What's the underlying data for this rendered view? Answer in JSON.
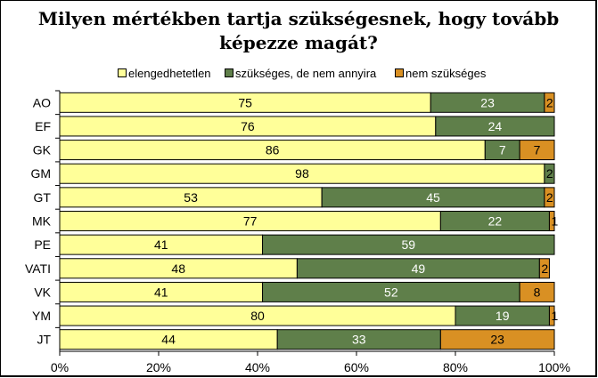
{
  "chart_data": {
    "type": "bar",
    "orientation": "horizontal",
    "stacked": "percent",
    "title": "Milyen mértékben tartja szükségesnek, hogy tovább képezze magát?",
    "categories": [
      "AO",
      "EF",
      "GK",
      "GM",
      "GT",
      "MK",
      "PE",
      "VATI",
      "VK",
      "YM",
      "JT"
    ],
    "series": [
      {
        "name": "elengedhetetlen",
        "color": "#FFFF99",
        "values": [
          75,
          76,
          86,
          98,
          53,
          77,
          41,
          48,
          41,
          80,
          44
        ]
      },
      {
        "name": "szükséges, de nem annyira",
        "color": "#5F7F4A",
        "values": [
          23,
          24,
          7,
          2,
          45,
          22,
          59,
          49,
          52,
          19,
          33
        ]
      },
      {
        "name": "nem szükséges",
        "color": "#D99023",
        "values": [
          2,
          0,
          7,
          0,
          2,
          1,
          0,
          2,
          8,
          1,
          23
        ]
      }
    ],
    "labels": [
      [
        "75",
        "23",
        "2"
      ],
      [
        "76",
        "24",
        ""
      ],
      [
        "86",
        "7",
        "7"
      ],
      [
        "98",
        "2",
        ""
      ],
      [
        "53",
        "45",
        "2"
      ],
      [
        "77",
        "22",
        "1"
      ],
      [
        "41",
        "59",
        ""
      ],
      [
        "48",
        "49",
        "2"
      ],
      [
        "41",
        "52",
        "8"
      ],
      [
        "80",
        "19",
        "1"
      ],
      [
        "44",
        "33",
        "23"
      ]
    ],
    "xlim": [
      0,
      100
    ],
    "x_ticks": [
      "0%",
      "20%",
      "40%",
      "60%",
      "80%",
      "100%"
    ],
    "grid": false,
    "legend_position": "top"
  }
}
